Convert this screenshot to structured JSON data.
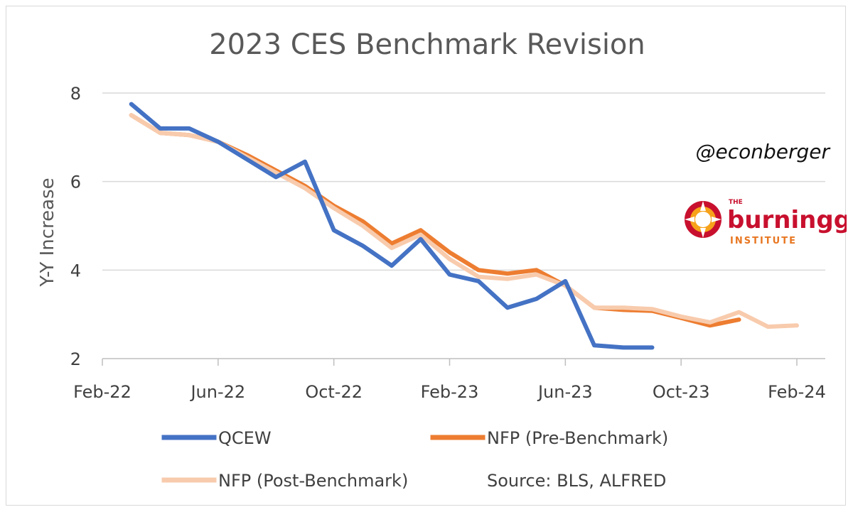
{
  "chart_data": {
    "type": "line",
    "title": "2023 CES Benchmark Revision",
    "ylabel": "Y-Y Increase",
    "xlabel": "",
    "x_tick_labels": [
      "Feb-22",
      "Jun-22",
      "Oct-22",
      "Feb-23",
      "Jun-23",
      "Oct-23",
      "Feb-24"
    ],
    "y_tick_labels": [
      "2",
      "4",
      "6",
      "8"
    ],
    "ylim": [
      2,
      8
    ],
    "xlim": [
      "2022-02",
      "2024-02"
    ],
    "grid": true,
    "series": [
      {
        "name": "QCEW",
        "color": "#4472c4",
        "x": [
          "2022-03",
          "2022-04",
          "2022-05",
          "2022-06",
          "2022-07",
          "2022-08",
          "2022-09",
          "2022-10",
          "2022-11",
          "2022-12",
          "2023-01",
          "2023-02",
          "2023-03",
          "2023-04",
          "2023-05",
          "2023-06",
          "2023-07",
          "2023-08",
          "2023-09"
        ],
        "values": [
          7.75,
          7.2,
          7.2,
          6.9,
          6.5,
          6.1,
          6.45,
          4.9,
          4.55,
          4.1,
          4.7,
          3.9,
          3.75,
          3.15,
          3.35,
          3.75,
          2.3,
          2.25,
          2.25
        ]
      },
      {
        "name": "NFP (Pre-Benchmark)",
        "color": "#ed7d31",
        "x": [
          "2022-03",
          "2022-04",
          "2022-05",
          "2022-06",
          "2022-07",
          "2022-08",
          "2022-09",
          "2022-10",
          "2022-11",
          "2022-12",
          "2023-01",
          "2023-02",
          "2023-03",
          "2023-04",
          "2023-05",
          "2023-06",
          "2023-07",
          "2023-08",
          "2023-09",
          "2023-10",
          "2023-11",
          "2023-12"
        ],
        "values": [
          7.5,
          7.1,
          7.05,
          6.9,
          6.6,
          6.25,
          5.9,
          5.45,
          5.1,
          4.6,
          4.9,
          4.4,
          4.0,
          3.92,
          4.0,
          3.65,
          3.15,
          3.1,
          3.08,
          2.92,
          2.75,
          2.88
        ]
      },
      {
        "name": "NFP (Post-Benchmark)",
        "color": "#f8cbad",
        "x": [
          "2022-03",
          "2022-04",
          "2022-05",
          "2022-06",
          "2022-07",
          "2022-08",
          "2022-09",
          "2022-10",
          "2022-11",
          "2022-12",
          "2023-01",
          "2023-02",
          "2023-03",
          "2023-04",
          "2023-05",
          "2023-06",
          "2023-07",
          "2023-08",
          "2023-09",
          "2023-10",
          "2023-11",
          "2023-12",
          "2024-01",
          "2024-02"
        ],
        "values": [
          7.5,
          7.1,
          7.05,
          6.9,
          6.55,
          6.2,
          5.85,
          5.4,
          5.0,
          4.5,
          4.8,
          4.25,
          3.85,
          3.8,
          3.9,
          3.65,
          3.15,
          3.15,
          3.12,
          2.95,
          2.82,
          3.05,
          2.72,
          2.75
        ]
      }
    ]
  },
  "legend": {
    "source_text": "Source: BLS, ALFRED"
  },
  "watermark": {
    "handle": "@econberger",
    "logo_the": "THE",
    "logo_name": "burningglass",
    "logo_institute": "INSTITUTE"
  }
}
